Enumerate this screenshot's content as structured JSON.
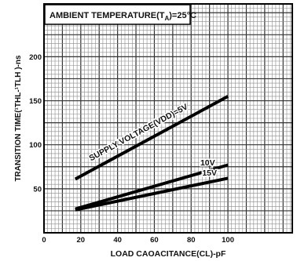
{
  "chart_data": {
    "type": "line",
    "annotation": "AMBIENT TEMPERATURE(T",
    "annotation_sub": "A",
    "annotation_tail": ")=25°C",
    "xlabel": "LOAD CAOACITANCE(CL)-pF",
    "ylabel": "TRANSITION TIME(¹THL-¹TLH )-ns",
    "xlim": [
      0,
      135
    ],
    "ylim": [
      0,
      260
    ],
    "x_ticks": [
      "0",
      "20",
      "40",
      "60",
      "80",
      "100"
    ],
    "x_tick_values": [
      0,
      20,
      40,
      60,
      80,
      100
    ],
    "y_ticks": [
      "50",
      "100",
      "150",
      "200"
    ],
    "y_tick_values": [
      50,
      100,
      150,
      200
    ],
    "grid": true,
    "series": [
      {
        "name": "SUPPLY VOLTAGE(VDD)=5V",
        "x": [
          17,
          100
        ],
        "y": [
          61,
          155
        ]
      },
      {
        "name": "10V",
        "x": [
          17,
          100
        ],
        "y": [
          27,
          77
        ]
      },
      {
        "name": "15V",
        "x": [
          17,
          100
        ],
        "y": [
          26,
          62
        ]
      }
    ],
    "line_color": "#000000",
    "grid_color": "#8c8c8c"
  }
}
